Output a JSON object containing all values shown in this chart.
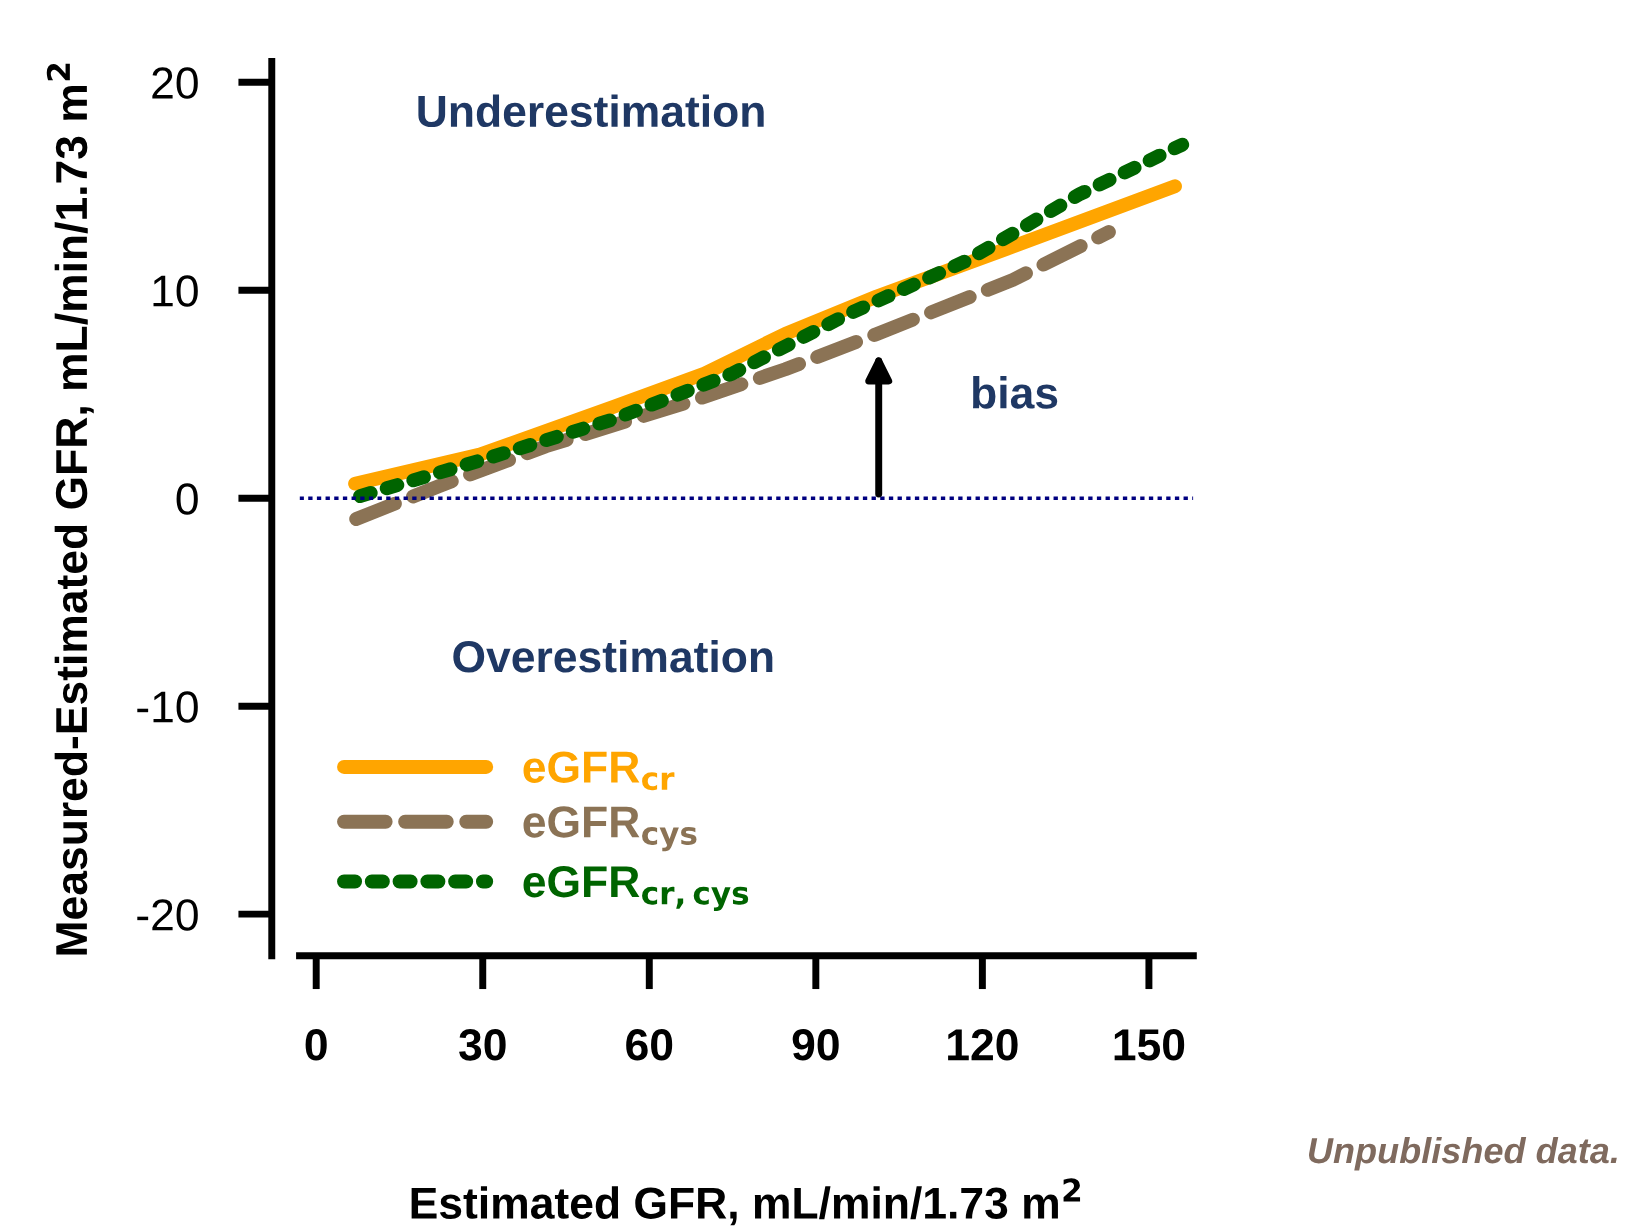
{
  "chart_data": {
    "type": "line",
    "xlabel": "Estimated GFR, mL/min/1.73 m$^{2}$",
    "ylabel": "Measured-Estimated GFR, mL/min/1.73 m$^{2}$",
    "xlim": [
      -3,
      158
    ],
    "xticks": [
      0,
      30,
      60,
      90,
      120,
      150
    ],
    "ylim": [
      -22,
      21
    ],
    "yticks": [
      -20,
      -10,
      0,
      10,
      20
    ],
    "grid": false,
    "legend": "bottom left",
    "marker": "none",
    "series": [
      {
        "name": "eGFR$_{cr}$",
        "color": "#ffa500",
        "line_style": "solid",
        "x": [
          7,
          29.5,
          53.6,
          70,
          84.5,
          101,
          125.5,
          154.7
        ],
        "values": [
          0.7,
          2.1,
          4.4,
          6.0,
          7.9,
          9.7,
          12.1,
          15.0
        ]
      },
      {
        "name": "eGFR$_{cys}$",
        "color": "#8b7355",
        "line_style": "dashed",
        "x": [
          7.2,
          22.3,
          41.4,
          68,
          84.5,
          101,
          125.5,
          142.8
        ],
        "values": [
          -1.0,
          0.6,
          2.5,
          4.7,
          6.2,
          7.9,
          10.5,
          12.8
        ]
      },
      {
        "name": "eGFR$_{cr,cys}$",
        "color": "#006400",
        "line_style": "dotted",
        "x": [
          7.9,
          30.6,
          53.6,
          75,
          95.4,
          117,
          137.4,
          156
        ],
        "values": [
          0.1,
          1.9,
          3.8,
          6.0,
          8.8,
          11.4,
          14.6,
          17.0
        ]
      }
    ],
    "ref_lines": [
      {
        "axis": "y",
        "value": 0,
        "color": "#000080",
        "line_style": "dotted"
      }
    ],
    "annotations": [
      "Underestimation",
      "Overestimation",
      "bias",
      "Unpublished data."
    ]
  }
}
